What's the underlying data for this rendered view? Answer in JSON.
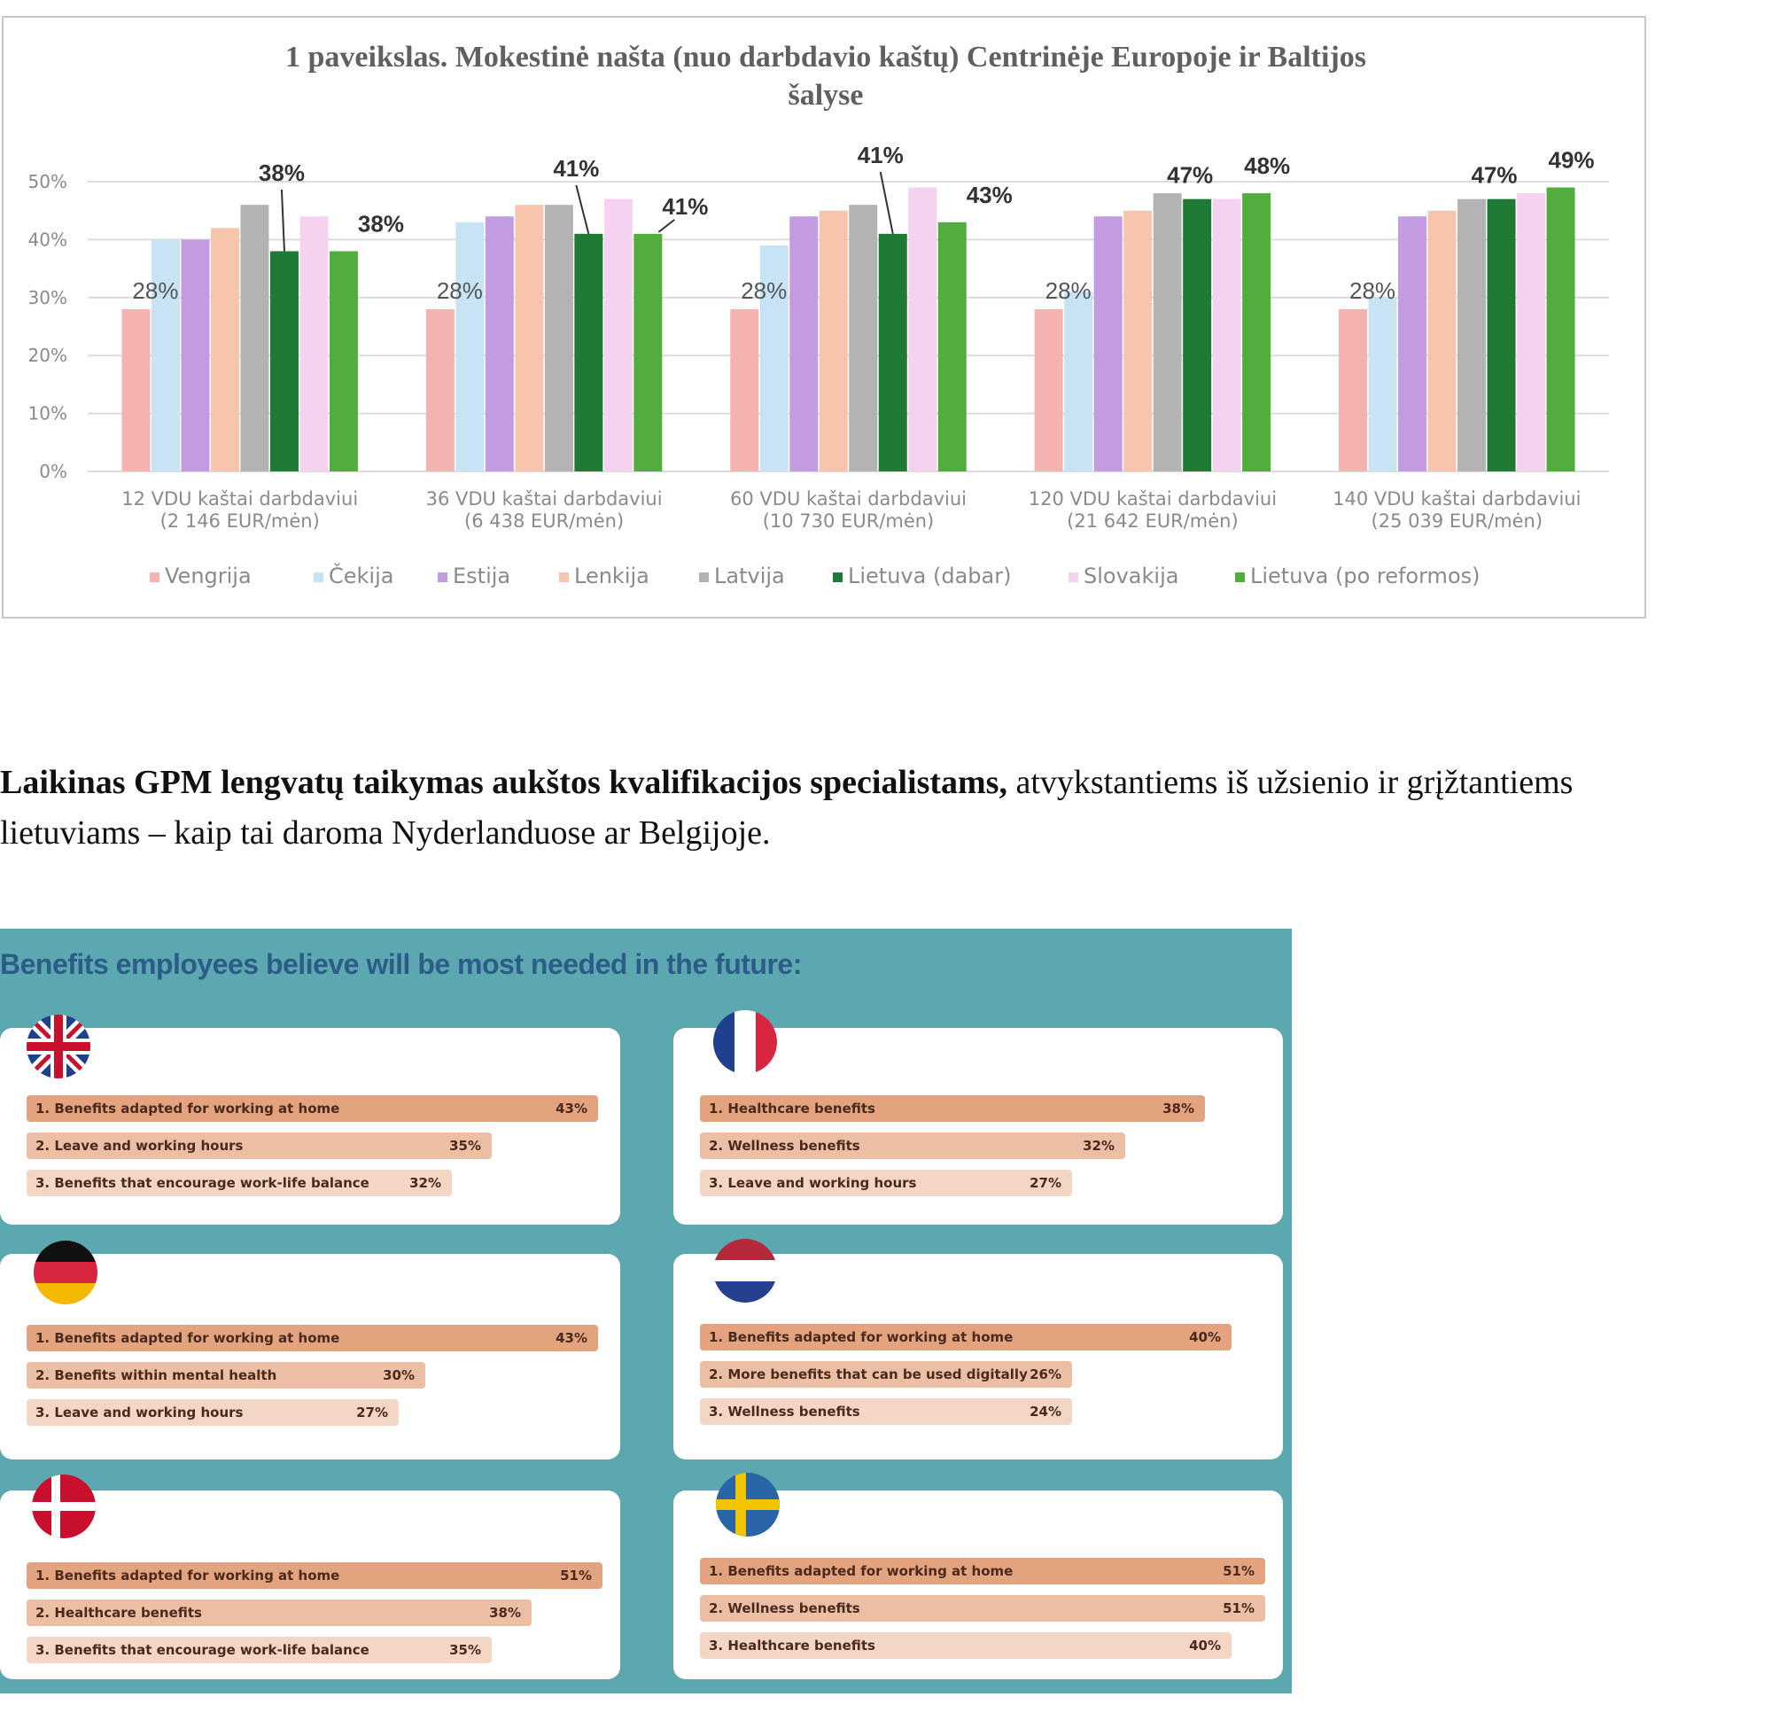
{
  "chart_data": {
    "type": "bar",
    "title_line1": "1 paveikslas. Mokestinė našta (nuo darbdavio kaštų) Centrinėje Europoje ir Baltijos",
    "title_line2": "šalyse",
    "ylim": [
      0,
      50
    ],
    "yticks": [
      "0%",
      "10%",
      "20%",
      "30%",
      "40%",
      "50%"
    ],
    "grid": true,
    "legend_position": "bottom",
    "categories": [
      [
        "12 VDU kaštai darbdaviui",
        "(2 146 EUR/mėn)"
      ],
      [
        "36 VDU kaštai darbdaviui",
        "(6 438 EUR/mėn)"
      ],
      [
        "60 VDU kaštai darbdaviui",
        "(10 730 EUR/mėn)"
      ],
      [
        "120 VDU kaštai darbdaviui",
        "(21 642 EUR/mėn)"
      ],
      [
        "140 VDU kaštai darbdaviui",
        "(25 039 EUR/mėn)"
      ]
    ],
    "series": [
      {
        "name": "Vengrija",
        "color": "#f4b3b0",
        "values": [
          28,
          28,
          28,
          28,
          28
        ]
      },
      {
        "name": "Čekija",
        "color": "#c8e4f4",
        "values": [
          40,
          43,
          39,
          31,
          30
        ]
      },
      {
        "name": "Estija",
        "color": "#c39be0",
        "values": [
          40,
          44,
          44,
          44,
          44
        ]
      },
      {
        "name": "Lenkija",
        "color": "#f7c5ab",
        "values": [
          42,
          46,
          45,
          45,
          45
        ]
      },
      {
        "name": "Latvija",
        "color": "#b3b3b3",
        "values": [
          46,
          46,
          46,
          48,
          47
        ]
      },
      {
        "name": "Lietuva (dabar)",
        "color": "#1f7a35",
        "values": [
          38,
          41,
          41,
          47,
          47
        ]
      },
      {
        "name": "Slovakija",
        "color": "#f5d3f0",
        "values": [
          44,
          47,
          49,
          47,
          48
        ]
      },
      {
        "name": "Lietuva (po reformos)",
        "color": "#53ad3e",
        "values": [
          38,
          41,
          43,
          48,
          49
        ]
      }
    ],
    "annotations": {
      "vengrija": [
        "28%",
        "28%",
        "28%",
        "28%",
        "28%"
      ],
      "lietuva_dabar": [
        "38%",
        "41%",
        "41%",
        "47%",
        "47%"
      ],
      "lietuva_po_reformos": [
        "38%",
        "41%",
        "43%",
        "48%",
        "49%"
      ]
    }
  },
  "paragraph": {
    "bold_part": "Laikinas GPM lengvatų taikymas aukštos kvalifikacijos specialistams,",
    "normal_part": " atvykstantiems iš užsienio ir grįžtantiems lietuviams – kaip tai daroma Nyderlanduose ar Belgijoje."
  },
  "infographic": {
    "title": "Benefits employees believe will be most needed in the future:",
    "countries": [
      {
        "flag": "uk-flag-icon",
        "items": [
          {
            "label": "1. Benefits adapted for working at home",
            "value": "43%",
            "pct": 43
          },
          {
            "label": "2. Leave and working hours",
            "value": "35%",
            "pct": 35
          },
          {
            "label": "3. Benefits that encourage work-life balance",
            "value": "32%",
            "pct": 32
          }
        ]
      },
      {
        "flag": "france-flag-icon",
        "items": [
          {
            "label": "1. Healthcare benefits",
            "value": "38%",
            "pct": 38
          },
          {
            "label": "2. Wellness benefits",
            "value": "32%",
            "pct": 32
          },
          {
            "label": "3. Leave and working hours",
            "value": "27%",
            "pct": 27
          }
        ]
      },
      {
        "flag": "germany-flag-icon",
        "items": [
          {
            "label": "1. Benefits adapted for working at home",
            "value": "43%",
            "pct": 43
          },
          {
            "label": "2. Benefits within mental health",
            "value": "30%",
            "pct": 30
          },
          {
            "label": "3. Leave and working hours",
            "value": "27%",
            "pct": 27
          }
        ]
      },
      {
        "flag": "netherlands-flag-icon",
        "items": [
          {
            "label": "1. Benefits adapted for working at home",
            "value": "40%",
            "pct": 40
          },
          {
            "label": "2. More benefits that can be used digitally",
            "value": "26%",
            "pct": 26
          },
          {
            "label": "3. Wellness benefits",
            "value": "24%",
            "pct": 24
          }
        ]
      },
      {
        "flag": "denmark-flag-icon",
        "items": [
          {
            "label": "1. Benefits adapted for working at home",
            "value": "51%",
            "pct": 51
          },
          {
            "label": "2. Healthcare benefits",
            "value": "38%",
            "pct": 38
          },
          {
            "label": "3. Benefits that encourage work-life balance",
            "value": "35%",
            "pct": 35
          }
        ]
      },
      {
        "flag": "sweden-flag-icon",
        "items": [
          {
            "label": "1. Benefits adapted for working at home",
            "value": "51%",
            "pct": 51
          },
          {
            "label": "2. Wellness benefits",
            "value": "51%",
            "pct": 51
          },
          {
            "label": "3. Healthcare benefits",
            "value": "40%",
            "pct": 40
          }
        ]
      }
    ]
  }
}
